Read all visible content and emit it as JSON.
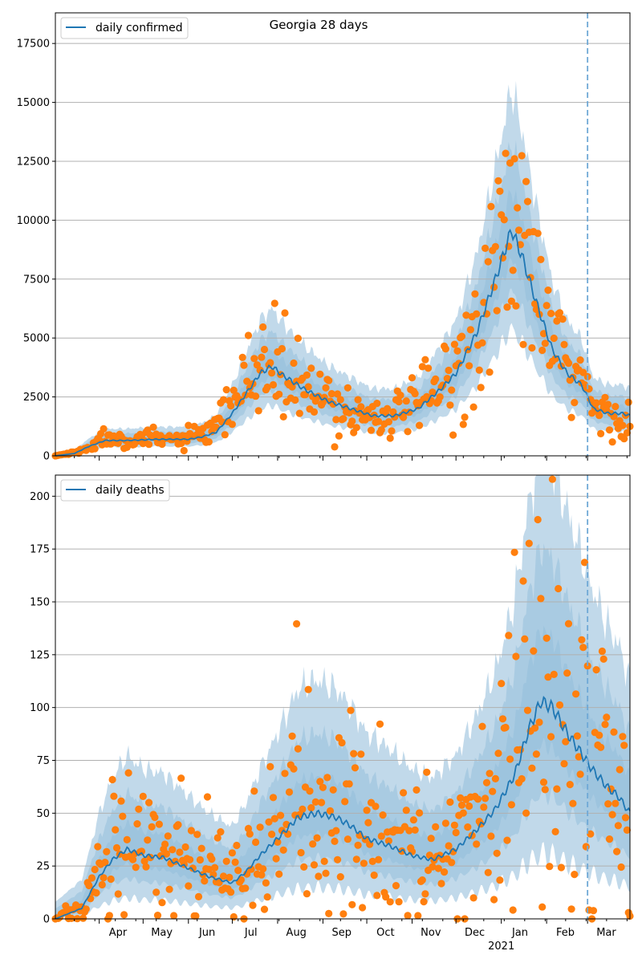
{
  "chart_data": [
    {
      "type": "line",
      "title": "Georgia 28 days",
      "legend": {
        "label": "daily confirmed",
        "placement": "top-left"
      },
      "ylim": [
        0,
        18800
      ],
      "yticks": [
        0,
        2500,
        5000,
        7500,
        10000,
        12500,
        15000,
        17500
      ],
      "ytick_labels": [
        "0",
        "2500",
        "5000",
        "7500",
        "10000",
        "12500",
        "15000",
        "17500"
      ],
      "grid": "horizontal",
      "colors": {
        "line": "#1f77b4",
        "band": "#1f77b4",
        "points": "#ff7f0e",
        "vline": "#6fa8d6"
      },
      "marker_date": "2021-03-01",
      "series": [
        {
          "name": "daily confirmed",
          "keyframes": [
            [
              "2020-03-02",
              0
            ],
            [
              "2020-03-15",
              100
            ],
            [
              "2020-03-25",
              400
            ],
            [
              "2020-04-05",
              650
            ],
            [
              "2020-04-20",
              650
            ],
            [
              "2020-05-10",
              700
            ],
            [
              "2020-06-01",
              700
            ],
            [
              "2020-06-10",
              800
            ],
            [
              "2020-06-20",
              1000
            ],
            [
              "2020-07-01",
              1800
            ],
            [
              "2020-07-10",
              2600
            ],
            [
              "2020-07-20",
              3500
            ],
            [
              "2020-07-28",
              3800
            ],
            [
              "2020-08-05",
              3400
            ],
            [
              "2020-08-20",
              2800
            ],
            [
              "2020-09-05",
              2300
            ],
            [
              "2020-09-20",
              2000
            ],
            [
              "2020-10-05",
              1700
            ],
            [
              "2020-10-20",
              1700
            ],
            [
              "2020-11-05",
              2000
            ],
            [
              "2020-11-20",
              2800
            ],
            [
              "2020-12-01",
              3500
            ],
            [
              "2020-12-15",
              5200
            ],
            [
              "2020-12-28",
              7500
            ],
            [
              "2021-01-08",
              9600
            ],
            [
              "2021-01-15",
              8500
            ],
            [
              "2021-01-25",
              6500
            ],
            [
              "2021-02-05",
              4500
            ],
            [
              "2021-02-15",
              3500
            ],
            [
              "2021-02-25",
              3000
            ],
            [
              "2021-03-05",
              2000
            ],
            [
              "2021-03-15",
              1800
            ],
            [
              "2021-03-25",
              1800
            ],
            [
              "2021-03-30",
              1700
            ]
          ],
          "band_widths": [
            0.18,
            0.38,
            0.62
          ],
          "observed_keyframes": [
            [
              "2020-03-02",
              0
            ],
            [
              "2020-03-20",
              200
            ],
            [
              "2020-04-01",
              700
            ],
            [
              "2020-04-15",
              800
            ],
            [
              "2020-05-01",
              700
            ],
            [
              "2020-05-20",
              700
            ],
            [
              "2020-06-05",
              750
            ],
            [
              "2020-06-20",
              1100
            ],
            [
              "2020-07-01",
              2200
            ],
            [
              "2020-07-15",
              3500
            ],
            [
              "2020-07-25",
              3900
            ],
            [
              "2020-08-05",
              3300
            ],
            [
              "2020-08-20",
              2700
            ],
            [
              "2020-09-05",
              2200
            ],
            [
              "2020-09-20",
              1900
            ],
            [
              "2020-10-05",
              1700
            ],
            [
              "2020-10-20",
              1800
            ],
            [
              "2020-11-05",
              2100
            ],
            [
              "2020-11-20",
              3000
            ],
            [
              "2020-12-05",
              4000
            ],
            [
              "2020-12-20",
              6500
            ],
            [
              "2021-01-01",
              8500
            ],
            [
              "2021-01-08",
              10500
            ],
            [
              "2021-01-15",
              8500
            ],
            [
              "2021-01-25",
              7000
            ],
            [
              "2021-02-05",
              4500
            ],
            [
              "2021-02-15",
              3700
            ],
            [
              "2021-02-25",
              3200
            ],
            [
              "2021-03-05",
              2000
            ],
            [
              "2021-03-15",
              1700
            ],
            [
              "2021-03-30",
              1600
            ]
          ]
        }
      ],
      "x_ticks": [
        "Apr",
        "May",
        "Jun",
        "Jul",
        "Aug",
        "Sep",
        "Oct",
        "Nov",
        "Dec",
        "Jan",
        "Feb",
        "Mar"
      ],
      "xlim": [
        "2020-03-02",
        "2021-03-30"
      ]
    },
    {
      "type": "line",
      "title": "",
      "legend": {
        "label": "daily deaths",
        "placement": "top-left"
      },
      "ylim": [
        0,
        210
      ],
      "yticks": [
        0,
        25,
        50,
        75,
        100,
        125,
        150,
        175,
        200
      ],
      "ytick_labels": [
        "0",
        "25",
        "50",
        "75",
        "100",
        "125",
        "150",
        "175",
        "200"
      ],
      "grid": "horizontal",
      "colors": {
        "line": "#1f77b4",
        "band": "#1f77b4",
        "points": "#ff7f0e",
        "vline": "#6fa8d6"
      },
      "marker_date": "2021-03-01",
      "series": [
        {
          "name": "daily deaths",
          "keyframes": [
            [
              "2020-03-02",
              0
            ],
            [
              "2020-03-20",
              5
            ],
            [
              "2020-04-01",
              20
            ],
            [
              "2020-04-10",
              28
            ],
            [
              "2020-04-20",
              33
            ],
            [
              "2020-05-01",
              30
            ],
            [
              "2020-05-15",
              29
            ],
            [
              "2020-06-01",
              24
            ],
            [
              "2020-06-15",
              20
            ],
            [
              "2020-07-01",
              17
            ],
            [
              "2020-07-10",
              22
            ],
            [
              "2020-07-20",
              30
            ],
            [
              "2020-08-01",
              38
            ],
            [
              "2020-08-15",
              48
            ],
            [
              "2020-08-28",
              50
            ],
            [
              "2020-09-10",
              48
            ],
            [
              "2020-09-20",
              44
            ],
            [
              "2020-10-01",
              38
            ],
            [
              "2020-10-15",
              35
            ],
            [
              "2020-11-01",
              30
            ],
            [
              "2020-11-15",
              28
            ],
            [
              "2020-12-01",
              33
            ],
            [
              "2020-12-15",
              42
            ],
            [
              "2020-12-28",
              52
            ],
            [
              "2021-01-10",
              68
            ],
            [
              "2021-01-20",
              90
            ],
            [
              "2021-01-28",
              103
            ],
            [
              "2021-02-05",
              100
            ],
            [
              "2021-02-15",
              88
            ],
            [
              "2021-02-25",
              78
            ],
            [
              "2021-03-05",
              70
            ],
            [
              "2021-03-15",
              62
            ],
            [
              "2021-03-22",
              58
            ],
            [
              "2021-03-30",
              50
            ]
          ],
          "band_widths": [
            0.28,
            0.6,
            1.0
          ],
          "observed_keyframes": [
            [
              "2020-03-02",
              0
            ],
            [
              "2020-03-25",
              10
            ],
            [
              "2020-04-05",
              30
            ],
            [
              "2020-04-20",
              40
            ],
            [
              "2020-05-05",
              35
            ],
            [
              "2020-05-25",
              30
            ],
            [
              "2020-06-15",
              25
            ],
            [
              "2020-07-01",
              18
            ],
            [
              "2020-07-20",
              30
            ],
            [
              "2020-08-05",
              45
            ],
            [
              "2020-08-20",
              55
            ],
            [
              "2020-09-05",
              50
            ],
            [
              "2020-09-20",
              45
            ],
            [
              "2020-10-10",
              38
            ],
            [
              "2020-11-01",
              30
            ],
            [
              "2020-11-20",
              30
            ],
            [
              "2020-12-05",
              40
            ],
            [
              "2020-12-20",
              50
            ],
            [
              "2021-01-05",
              70
            ],
            [
              "2021-01-20",
              120
            ],
            [
              "2021-02-01",
              110
            ],
            [
              "2021-02-15",
              95
            ],
            [
              "2021-03-01",
              85
            ],
            [
              "2021-03-15",
              60
            ],
            [
              "2021-03-30",
              55
            ]
          ]
        }
      ],
      "x_ticks": [
        "Apr",
        "May",
        "Jun",
        "Jul",
        "Aug",
        "Sep",
        "Oct",
        "Nov",
        "Dec",
        "Jan",
        "Feb",
        "Mar"
      ],
      "x_year_label": "2021",
      "xlim": [
        "2020-03-02",
        "2021-03-30"
      ]
    }
  ]
}
